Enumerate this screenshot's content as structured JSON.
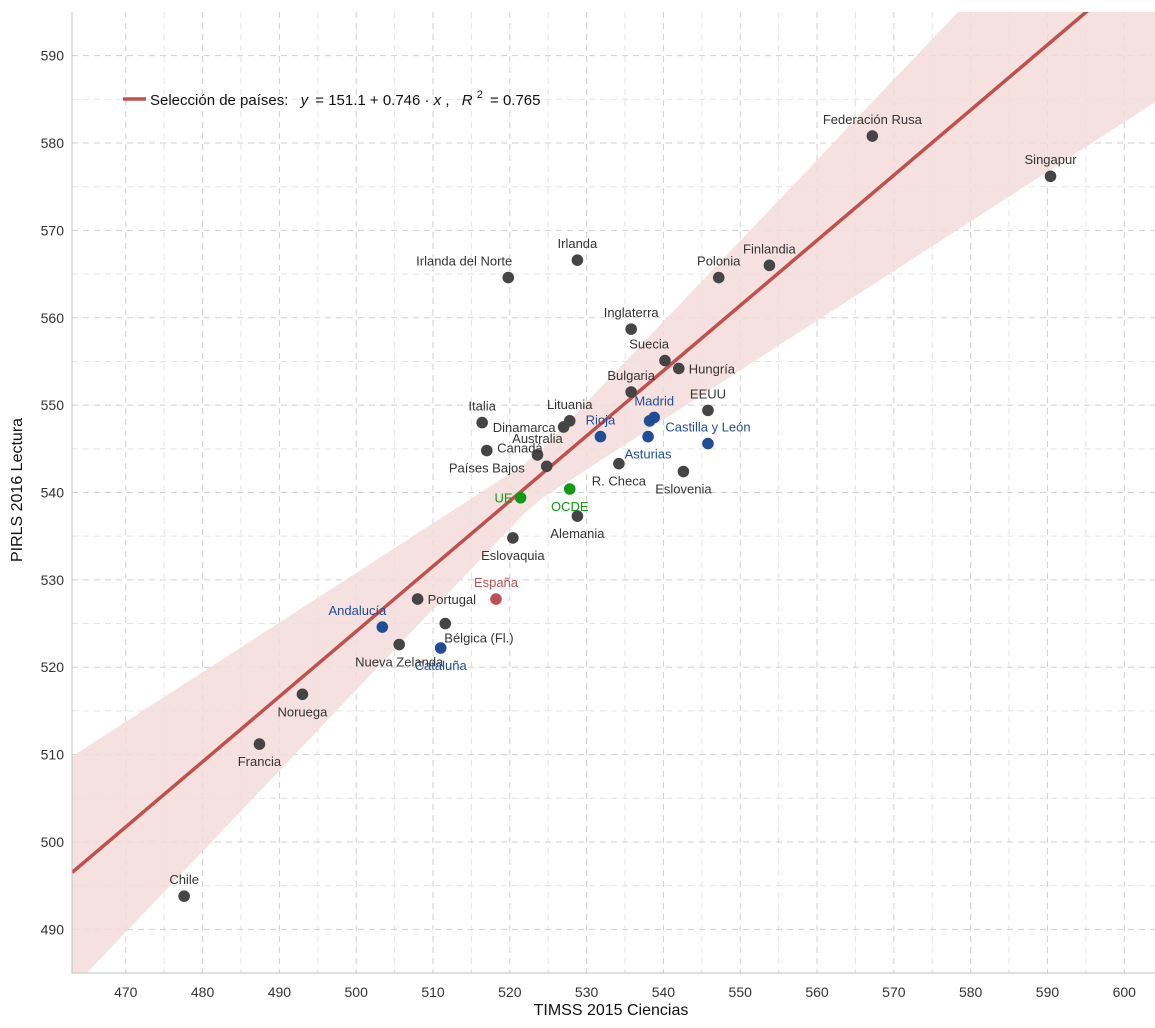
{
  "chart_data": {
    "type": "scatter",
    "xlabel": "TIMSS 2015 Ciencias",
    "ylabel": "PIRLS 2016 Lectura",
    "xlim": [
      463,
      604
    ],
    "ylim": [
      485,
      595
    ],
    "x_ticks": [
      470,
      480,
      490,
      500,
      510,
      520,
      530,
      540,
      550,
      560,
      570,
      580,
      590,
      600
    ],
    "y_ticks": [
      490,
      500,
      510,
      520,
      530,
      540,
      550,
      560,
      570,
      580,
      590
    ],
    "grid": true,
    "colors": {
      "country": "#454545",
      "region": "#1f4e96",
      "aggregate": "#119911",
      "spain": "#c05050",
      "fit_line": "#c0504d",
      "confidence_band": "#f2dcdb"
    },
    "regression": {
      "intercept": 151.1,
      "slope": 0.746,
      "r2": 0.765,
      "legend_prefix": "Selección de países:",
      "eq_y": "y",
      "eq_body": "= 151.1 + 0.746 · ",
      "eq_x": "x",
      "eq_comma": ",",
      "eq_r": "R",
      "eq_sup": "2",
      "eq_r2_value": "= 0.765",
      "band_halfwidth_at_mean": 2.6,
      "band_growth_per_unit": 0.178,
      "band_center_x": 523
    },
    "points": [
      {
        "label": "Federación Rusa",
        "x": 567.2,
        "y": 580.8,
        "group": "country",
        "anchor": "middle",
        "label_pos": "above"
      },
      {
        "label": "Singapur",
        "x": 590.4,
        "y": 576.2,
        "group": "country",
        "anchor": "middle",
        "label_pos": "above"
      },
      {
        "label": "Irlanda",
        "x": 528.8,
        "y": 566.6,
        "group": "country",
        "anchor": "middle",
        "label_pos": "above"
      },
      {
        "label": "Irlanda del Norte",
        "x": 519.8,
        "y": 564.6,
        "group": "country",
        "anchor": "end",
        "label_pos": "upper-left"
      },
      {
        "label": "Polonia",
        "x": 547.2,
        "y": 564.6,
        "group": "country",
        "anchor": "middle",
        "label_pos": "above"
      },
      {
        "label": "Finlandia",
        "x": 553.8,
        "y": 566.0,
        "group": "country",
        "anchor": "middle",
        "label_pos": "above"
      },
      {
        "label": "Inglaterra",
        "x": 535.8,
        "y": 558.7,
        "group": "country",
        "anchor": "middle",
        "label_pos": "above"
      },
      {
        "label": "Suecia",
        "x": 540.2,
        "y": 555.1,
        "group": "country",
        "anchor": "end",
        "label_pos": "upper-left"
      },
      {
        "label": "Hungría",
        "x": 542.0,
        "y": 554.2,
        "group": "country",
        "anchor": "start",
        "label_pos": "right"
      },
      {
        "label": "Bulgaria",
        "x": 535.8,
        "y": 551.5,
        "group": "country",
        "anchor": "middle",
        "label_pos": "above"
      },
      {
        "label": "EEUU",
        "x": 545.8,
        "y": 549.4,
        "group": "country",
        "anchor": "middle",
        "label_pos": "above"
      },
      {
        "label": "Italia",
        "x": 516.4,
        "y": 548.0,
        "group": "country",
        "anchor": "middle",
        "label_pos": "above"
      },
      {
        "label": "Lituania",
        "x": 527.8,
        "y": 548.2,
        "group": "country",
        "anchor": "middle",
        "label_pos": "above"
      },
      {
        "label": "Dinamarca",
        "x": 527.0,
        "y": 547.5,
        "group": "country",
        "anchor": "end",
        "label_pos": "left"
      },
      {
        "label": "Australia",
        "x": 523.6,
        "y": 544.3,
        "group": "country",
        "anchor": "middle",
        "label_pos": "above"
      },
      {
        "label": "Países Bajos",
        "x": 517.0,
        "y": 544.8,
        "group": "country",
        "anchor": "middle",
        "label_pos": "below"
      },
      {
        "label": "Canadá",
        "x": 524.8,
        "y": 543.0,
        "group": "country",
        "anchor": "end",
        "label_pos": "lower-left"
      },
      {
        "label": "R. Checa",
        "x": 534.2,
        "y": 543.3,
        "group": "country",
        "anchor": "middle",
        "label_pos": "below"
      },
      {
        "label": "Eslovenia",
        "x": 542.6,
        "y": 542.4,
        "group": "country",
        "anchor": "middle",
        "label_pos": "below"
      },
      {
        "label": "Alemania",
        "x": 528.8,
        "y": 537.3,
        "group": "country",
        "anchor": "middle",
        "label_pos": "below"
      },
      {
        "label": "Eslovaquia",
        "x": 520.4,
        "y": 534.8,
        "group": "country",
        "anchor": "middle",
        "label_pos": "below"
      },
      {
        "label": "Portugal",
        "x": 508.0,
        "y": 527.8,
        "group": "country",
        "anchor": "start",
        "label_pos": "right"
      },
      {
        "label": "Bélgica (Fl.)",
        "x": 511.6,
        "y": 525.0,
        "group": "country",
        "anchor": "start",
        "label_pos": "lower-right"
      },
      {
        "label": "Nueva Zelanda",
        "x": 505.6,
        "y": 522.6,
        "group": "country",
        "anchor": "middle",
        "label_pos": "below"
      },
      {
        "label": "Noruega",
        "x": 493.0,
        "y": 516.9,
        "group": "country",
        "anchor": "middle",
        "label_pos": "below"
      },
      {
        "label": "Francia",
        "x": 487.4,
        "y": 511.2,
        "group": "country",
        "anchor": "middle",
        "label_pos": "below"
      },
      {
        "label": "Chile",
        "x": 477.6,
        "y": 493.8,
        "group": "country",
        "anchor": "middle",
        "label_pos": "above"
      },
      {
        "label": "Madrid",
        "x": 538.8,
        "y": 548.6,
        "group": "region",
        "anchor": "middle",
        "label_pos": "above"
      },
      {
        "label": "",
        "x": 538.2,
        "y": 548.2,
        "group": "region",
        "anchor": "middle",
        "label_pos": "none"
      },
      {
        "label": "Rioja",
        "x": 531.8,
        "y": 546.4,
        "group": "region",
        "anchor": "middle",
        "label_pos": "above"
      },
      {
        "label": "Asturias",
        "x": 538.0,
        "y": 546.4,
        "group": "region",
        "anchor": "middle",
        "label_pos": "below-noshow"
      },
      {
        "label": "Castilla y León",
        "x": 545.8,
        "y": 545.6,
        "group": "region",
        "anchor": "middle",
        "label_pos": "above"
      },
      {
        "label": "Andalucía",
        "x": 503.4,
        "y": 524.6,
        "group": "region",
        "anchor": "end",
        "label_pos": "upper-left"
      },
      {
        "label": "Cataluña",
        "x": 511.0,
        "y": 522.2,
        "group": "region",
        "anchor": "middle",
        "label_pos": "below"
      },
      {
        "label": "UE",
        "x": 521.4,
        "y": 539.4,
        "group": "aggregate",
        "anchor": "end",
        "label_pos": "left"
      },
      {
        "label": "OCDE",
        "x": 527.8,
        "y": 540.4,
        "group": "aggregate",
        "anchor": "middle",
        "label_pos": "below"
      },
      {
        "label": "España",
        "x": 518.2,
        "y": 527.8,
        "group": "spain",
        "anchor": "middle",
        "label_pos": "above"
      }
    ]
  }
}
